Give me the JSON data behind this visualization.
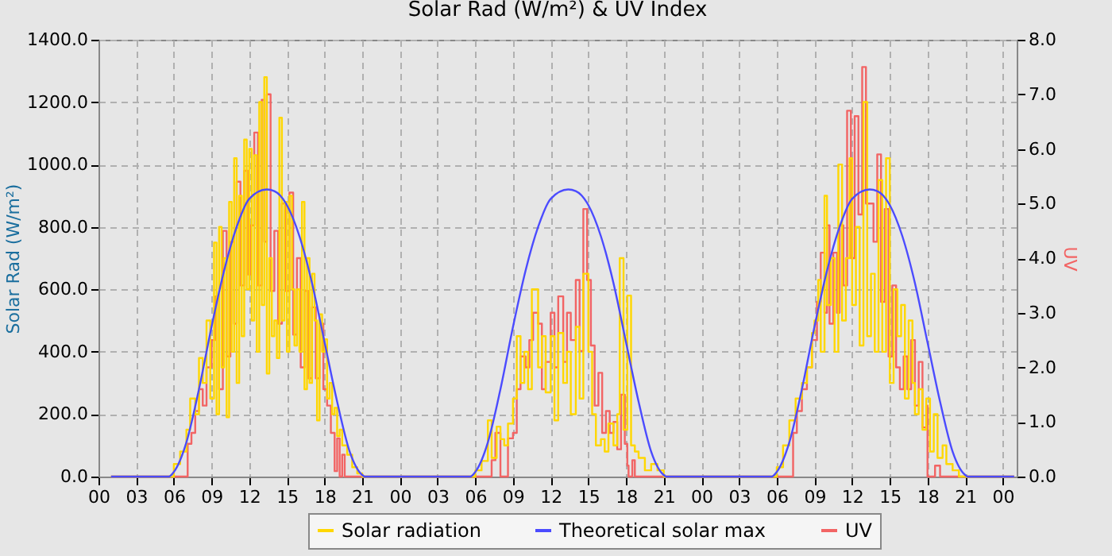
{
  "chart_data": {
    "type": "line",
    "title": "Solar Rad (W/m²) &  UV Index",
    "ylabel": "Solar Rad (W/m²)",
    "y2label": "UV",
    "xlim": [
      0,
      73.1
    ],
    "ylim": [
      0,
      1400
    ],
    "y2lim": [
      0,
      8
    ],
    "xticks": [
      {
        "value": 0,
        "label": "00"
      },
      {
        "value": 3,
        "label": "03"
      },
      {
        "value": 6,
        "label": "06"
      },
      {
        "value": 9,
        "label": "09"
      },
      {
        "value": 12,
        "label": "12"
      },
      {
        "value": 15,
        "label": "15"
      },
      {
        "value": 18,
        "label": "18"
      },
      {
        "value": 21,
        "label": "21"
      },
      {
        "value": 24,
        "label": "00"
      },
      {
        "value": 27,
        "label": "03"
      },
      {
        "value": 30,
        "label": "06"
      },
      {
        "value": 33,
        "label": "09"
      },
      {
        "value": 36,
        "label": "12"
      },
      {
        "value": 39,
        "label": "15"
      },
      {
        "value": 42,
        "label": "18"
      },
      {
        "value": 45,
        "label": "21"
      },
      {
        "value": 48,
        "label": "00"
      },
      {
        "value": 51,
        "label": "03"
      },
      {
        "value": 54,
        "label": "06"
      },
      {
        "value": 57,
        "label": "09"
      },
      {
        "value": 60,
        "label": "12"
      },
      {
        "value": 63,
        "label": "15"
      },
      {
        "value": 66,
        "label": "18"
      },
      {
        "value": 69,
        "label": "21"
      },
      {
        "value": 72,
        "label": "00"
      }
    ],
    "yticks": [
      {
        "value": 0,
        "label": "0.0"
      },
      {
        "value": 200,
        "label": "200.0"
      },
      {
        "value": 400,
        "label": "400.0"
      },
      {
        "value": 600,
        "label": "600.0"
      },
      {
        "value": 800,
        "label": "800.0"
      },
      {
        "value": 1000,
        "label": "1000.0"
      },
      {
        "value": 1200,
        "label": "1200.0"
      },
      {
        "value": 1400,
        "label": "1400.0"
      }
    ],
    "y2ticks": [
      {
        "value": 0,
        "label": "0.0"
      },
      {
        "value": 1,
        "label": "1.0"
      },
      {
        "value": 2,
        "label": "2.0"
      },
      {
        "value": 3,
        "label": "3.0"
      },
      {
        "value": 4,
        "label": "4.0"
      },
      {
        "value": 5,
        "label": "5.0"
      },
      {
        "value": 6,
        "label": "6.0"
      },
      {
        "value": 7,
        "label": "7.0"
      },
      {
        "value": 8,
        "label": "8.0"
      }
    ],
    "grid": true,
    "legend": "bottom",
    "marker": "none",
    "series": [
      {
        "name": "Solar radiation",
        "type": "step",
        "color": "#ffd700",
        "x": [
          1,
          5.5,
          6,
          6.5,
          7,
          7.3,
          7.7,
          8,
          8.3,
          8.6,
          8.9,
          9.2,
          9.4,
          9.6,
          9.8,
          10,
          10.2,
          10.4,
          10.6,
          10.8,
          11,
          11.2,
          11.4,
          11.6,
          11.8,
          12,
          12.2,
          12.4,
          12.6,
          12.8,
          13,
          13.2,
          13.4,
          13.6,
          13.8,
          14,
          14.2,
          14.4,
          14.6,
          14.8,
          15,
          15.2,
          15.4,
          15.6,
          15.8,
          16,
          16.2,
          16.4,
          16.6,
          16.8,
          17,
          17.2,
          17.4,
          17.6,
          17.8,
          18,
          18.2,
          18.4,
          18.6,
          18.8,
          19,
          19.2,
          19.4,
          19.8,
          20.2,
          20.6,
          21,
          29.5,
          30,
          30.5,
          31,
          31.3,
          31.7,
          32,
          32.3,
          32.6,
          33,
          33.3,
          33.6,
          33.9,
          34.2,
          34.5,
          35,
          35.3,
          35.6,
          36,
          36.3,
          36.6,
          37,
          37.3,
          37.6,
          38,
          38.3,
          38.6,
          39,
          39.3,
          39.6,
          40,
          40.3,
          40.6,
          41,
          41.3,
          41.5,
          41.8,
          42.1,
          42.4,
          42.7,
          43,
          43.5,
          44,
          44.5,
          45,
          53.5,
          54,
          54.5,
          55,
          55.5,
          56,
          56.4,
          56.8,
          57,
          57.3,
          57.5,
          57.8,
          58,
          58.3,
          58.6,
          58.9,
          59.2,
          59.5,
          59.8,
          60,
          60.3,
          60.6,
          60.9,
          61.2,
          61.5,
          61.8,
          62.1,
          62.4,
          62.7,
          63,
          63.3,
          63.6,
          63.9,
          64.2,
          64.5,
          64.8,
          65,
          65.3,
          65.6,
          65.9,
          66.2,
          66.5,
          66.8,
          67.2,
          67.5,
          68,
          68.5,
          72.9
        ],
        "values": [
          0,
          0,
          40,
          80,
          150,
          250,
          200,
          380,
          300,
          500,
          250,
          750,
          200,
          800,
          350,
          700,
          190,
          880,
          400,
          1020,
          300,
          900,
          450,
          1080,
          600,
          1050,
          500,
          1030,
          400,
          1200,
          550,
          1280,
          330,
          700,
          450,
          500,
          380,
          1150,
          500,
          880,
          400,
          900,
          600,
          420,
          600,
          400,
          880,
          280,
          700,
          300,
          650,
          500,
          180,
          520,
          400,
          440,
          250,
          300,
          200,
          220,
          130,
          150,
          100,
          70,
          30,
          10,
          0,
          0,
          20,
          50,
          180,
          60,
          160,
          120,
          100,
          170,
          250,
          450,
          300,
          400,
          280,
          600,
          350,
          450,
          270,
          450,
          180,
          460,
          300,
          400,
          200,
          480,
          250,
          650,
          400,
          200,
          100,
          120,
          80,
          170,
          100,
          200,
          700,
          150,
          580,
          100,
          80,
          60,
          20,
          40,
          20,
          0,
          0,
          30,
          100,
          180,
          250,
          300,
          350,
          460,
          500,
          630,
          400,
          900,
          550,
          700,
          400,
          1000,
          500,
          700,
          1020,
          550,
          800,
          420,
          1200,
          450,
          650,
          400,
          950,
          400,
          1020,
          300,
          600,
          450,
          550,
          250,
          500,
          300,
          200,
          280,
          150,
          250,
          80,
          200,
          60,
          100,
          40,
          20,
          0,
          0
        ]
      },
      {
        "name": "Theoretical solar max",
        "type": "line",
        "color": "#4b4bff",
        "x": [
          1,
          5.6,
          6,
          7,
          8,
          9,
          10,
          11,
          12,
          13.4,
          14,
          15,
          16,
          17,
          18,
          19,
          20,
          21,
          21.2,
          29.6,
          30,
          31,
          32,
          33,
          34,
          35,
          36,
          37.4,
          38,
          39,
          40,
          41,
          42,
          43,
          44,
          45,
          45.2,
          53.6,
          54,
          55,
          56,
          57,
          58,
          59,
          60,
          61.4,
          62,
          63,
          64,
          65,
          66,
          67,
          68,
          69,
          69.2,
          72.9
        ],
        "values": [
          0,
          0,
          15,
          110,
          280,
          480,
          660,
          800,
          890,
          920,
          915,
          870,
          770,
          620,
          430,
          240,
          80,
          5,
          0,
          0,
          15,
          110,
          280,
          480,
          660,
          800,
          890,
          920,
          915,
          870,
          770,
          620,
          430,
          240,
          80,
          5,
          0,
          0,
          15,
          110,
          280,
          480,
          660,
          800,
          890,
          920,
          915,
          870,
          770,
          620,
          430,
          240,
          80,
          5,
          0,
          0
        ]
      },
      {
        "name": "UV",
        "type": "step",
        "axis": "y2",
        "color": "#f26464",
        "x": [
          1,
          7,
          7.1,
          7.4,
          7.7,
          8,
          8.3,
          8.6,
          9,
          9.3,
          9.6,
          9.9,
          10.2,
          10.5,
          10.8,
          11,
          11.3,
          11.6,
          11.9,
          12.1,
          12.4,
          12.7,
          13,
          13.2,
          13.4,
          13.7,
          14,
          14.3,
          14.6,
          14.9,
          15.2,
          15.5,
          15.8,
          16.1,
          16.4,
          16.7,
          17,
          17.3,
          17.6,
          17.9,
          18.2,
          18.5,
          18.8,
          19,
          19.2,
          19.4,
          19.6,
          31,
          31.3,
          31.6,
          31.9,
          32,
          32.3,
          32.6,
          33,
          33.3,
          33.6,
          34,
          34.3,
          34.6,
          35,
          35.3,
          35.6,
          36,
          36.3,
          36.6,
          37,
          37.3,
          37.6,
          38,
          38.3,
          38.6,
          38.9,
          39.2,
          39.5,
          39.8,
          40.1,
          40.4,
          40.7,
          41,
          41.3,
          41.6,
          41.9,
          42.1,
          42.2,
          42.5,
          42.7,
          55,
          55.3,
          55.6,
          56,
          56.4,
          56.8,
          57.2,
          57.5,
          57.8,
          58,
          58.2,
          58.5,
          58.8,
          59,
          59.3,
          59.6,
          59.9,
          60.2,
          60.5,
          60.8,
          61.1,
          61.4,
          61.7,
          62,
          62.3,
          62.6,
          62.9,
          63.2,
          63.5,
          63.8,
          64.1,
          64.4,
          64.7,
          65,
          65.3,
          65.6,
          65.9,
          66,
          66.3,
          66.6,
          67,
          72.9
        ],
        "values": [
          0,
          0,
          0.6,
          0.8,
          1.2,
          1.6,
          1.3,
          2.0,
          2.5,
          3.3,
          1.6,
          4.5,
          2.2,
          4.3,
          2.8,
          5.4,
          3.5,
          5.6,
          3.7,
          4.6,
          6.3,
          3.5,
          6.9,
          4.3,
          7.0,
          3.4,
          4.5,
          2.8,
          5.0,
          3.4,
          5.2,
          2.6,
          4.0,
          2.0,
          3.4,
          1.8,
          3.1,
          1.8,
          2.8,
          1.6,
          1.3,
          0.8,
          0.1,
          0.7,
          0,
          0.4,
          0,
          0,
          0.3,
          0.8,
          0.8,
          0,
          0,
          0.7,
          0.8,
          1.6,
          2.2,
          2.0,
          2.5,
          3.0,
          2.8,
          1.6,
          2.1,
          3.0,
          2.0,
          3.3,
          2.1,
          3.0,
          2.5,
          3.6,
          2.3,
          4.9,
          3.6,
          2.4,
          1.3,
          1.9,
          0.8,
          1.2,
          0.8,
          1.0,
          0.5,
          1.5,
          0.6,
          0.2,
          0,
          0.3,
          0,
          0,
          0.8,
          1.2,
          1.6,
          2.0,
          2.5,
          3.2,
          4.1,
          3.0,
          4.6,
          2.8,
          4.1,
          3.0,
          4.6,
          3.5,
          6.7,
          4.0,
          6.6,
          4.8,
          7.5,
          5.0,
          5.0,
          4.3,
          5.9,
          3.2,
          4.9,
          2.2,
          3.5,
          2.0,
          1.6,
          2.2,
          1.6,
          2.5,
          1.3,
          2.1,
          0.9,
          1.3,
          0,
          0,
          0.2,
          0,
          0
        ]
      }
    ]
  }
}
